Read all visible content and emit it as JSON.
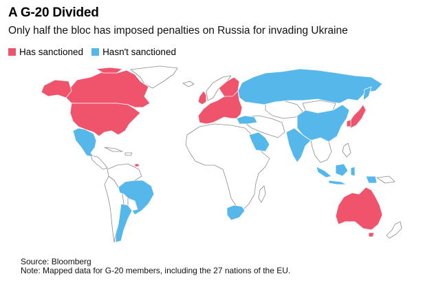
{
  "title": "A G-20 Divided",
  "subtitle": "Only half the bloc has imposed penalties on Russia for invading Ukraine",
  "legend": {
    "sanctioned": {
      "label": "Has sanctioned",
      "color": "#f0546c"
    },
    "not_sanctioned": {
      "label": "Hasn't sanctioned",
      "color": "#56b8ea"
    }
  },
  "footer": {
    "source": "Source: Bloomberg",
    "note": "Note: Mapped data for G-20 members, including the 27 nations of the EU."
  },
  "colors": {
    "neutral": "#ffffff",
    "border": "#8a8a8a"
  },
  "countries": {
    "sanctioned": [
      "Canada",
      "United States",
      "United Kingdom",
      "European Union",
      "Japan",
      "South Korea",
      "Australia"
    ],
    "not_sanctioned": [
      "Russia",
      "China",
      "India",
      "Indonesia",
      "Turkey",
      "Saudi Arabia",
      "Mexico",
      "Brazil",
      "Argentina",
      "South Africa"
    ]
  }
}
